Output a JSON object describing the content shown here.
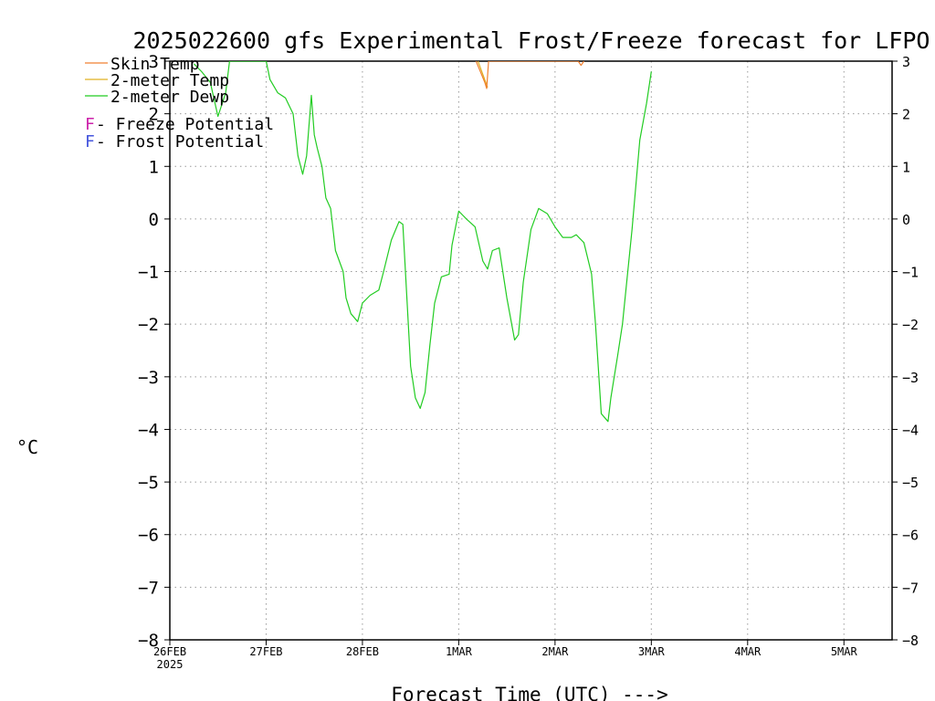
{
  "chart_data": {
    "type": "line",
    "title": "2025022600 gfs Experimental Frost/Freeze forecast for LFPO",
    "ylabel": "°C",
    "xlabel": "Forecast Time (UTC) --->",
    "ylim": [
      -8,
      3
    ],
    "xlim": [
      0,
      7.5
    ],
    "grid": true,
    "yticks": [
      3,
      2,
      1,
      0,
      -1,
      -2,
      -3,
      -4,
      -5,
      -6,
      -7,
      -8
    ],
    "xticks": [
      {
        "value": 0,
        "label": "26FEB",
        "sublabel": "2025"
      },
      {
        "value": 1,
        "label": "27FEB"
      },
      {
        "value": 2,
        "label": "28FEB"
      },
      {
        "value": 3,
        "label": "1MAR"
      },
      {
        "value": 4,
        "label": "2MAR"
      },
      {
        "value": 5,
        "label": "3MAR"
      },
      {
        "value": 6,
        "label": "4MAR"
      },
      {
        "value": 7,
        "label": "5MAR"
      }
    ],
    "legend": {
      "placement": "top-left",
      "items": [
        {
          "name": "Skin Temp",
          "color": "#f08030"
        },
        {
          "name": "2-meter Temp",
          "color": "#e0b020"
        },
        {
          "name": "2-meter Dewp",
          "color": "#22cc22"
        }
      ],
      "markers": [
        {
          "letter": "F",
          "text": " - Freeze Potential",
          "color": "#cc22aa"
        },
        {
          "letter": "F",
          "text": " - Frost Potential",
          "color": "#4455dd"
        }
      ]
    },
    "series": [
      {
        "name": "2-meter Dewp",
        "color": "#22cc22",
        "x": [
          0.25,
          0.33,
          0.42,
          0.5,
          0.58,
          0.62,
          1.0,
          1.04,
          1.12,
          1.2,
          1.28,
          1.33,
          1.38,
          1.42,
          1.47,
          1.5,
          1.53,
          1.58,
          1.62,
          1.67,
          1.72,
          1.8,
          1.83,
          1.88,
          1.95,
          2.0,
          2.08,
          2.17,
          2.22,
          2.3,
          2.38,
          2.42,
          2.5,
          2.55,
          2.6,
          2.65,
          2.7,
          2.75,
          2.82,
          2.9,
          2.93,
          3.0,
          3.08,
          3.17,
          3.25,
          3.3,
          3.35,
          3.42,
          3.5,
          3.58,
          3.62,
          3.67,
          3.75,
          3.83,
          3.92,
          4.0,
          4.08,
          4.17,
          4.22,
          4.3,
          4.38,
          4.42,
          4.48,
          4.55,
          4.58,
          4.65,
          4.7,
          4.8,
          4.88,
          4.95,
          5.0
        ],
        "values": [
          2.95,
          2.8,
          2.6,
          1.95,
          2.4,
          3.0,
          3.0,
          2.65,
          2.4,
          2.3,
          2.0,
          1.2,
          0.85,
          1.2,
          2.35,
          1.6,
          1.35,
          1.0,
          0.4,
          0.2,
          -0.6,
          -1.0,
          -1.5,
          -1.8,
          -1.95,
          -1.6,
          -1.45,
          -1.35,
          -1.0,
          -0.4,
          -0.05,
          -0.1,
          -2.8,
          -3.4,
          -3.6,
          -3.3,
          -2.4,
          -1.6,
          -1.1,
          -1.05,
          -0.5,
          0.15,
          0.0,
          -0.15,
          -0.8,
          -0.95,
          -0.6,
          -0.55,
          -1.5,
          -2.3,
          -2.2,
          -1.2,
          -0.2,
          0.2,
          0.1,
          -0.15,
          -0.35,
          -0.35,
          -0.3,
          -0.45,
          -1.05,
          -2.0,
          -3.7,
          -3.85,
          -3.4,
          -2.6,
          -2.0,
          -0.2,
          1.5,
          2.2,
          2.8
        ]
      },
      {
        "name": "2-meter Temp",
        "color": "#e0b020",
        "x": [
          3.2,
          3.3
        ],
        "values": [
          3.0,
          2.5
        ]
      },
      {
        "name": "Skin Temp",
        "color": "#f08030",
        "x": [
          3.18,
          3.27,
          3.29,
          3.31,
          4.24,
          4.27,
          4.3
        ],
        "values": [
          3.0,
          2.6,
          2.48,
          3.0,
          3.0,
          2.92,
          3.0
        ]
      }
    ]
  }
}
